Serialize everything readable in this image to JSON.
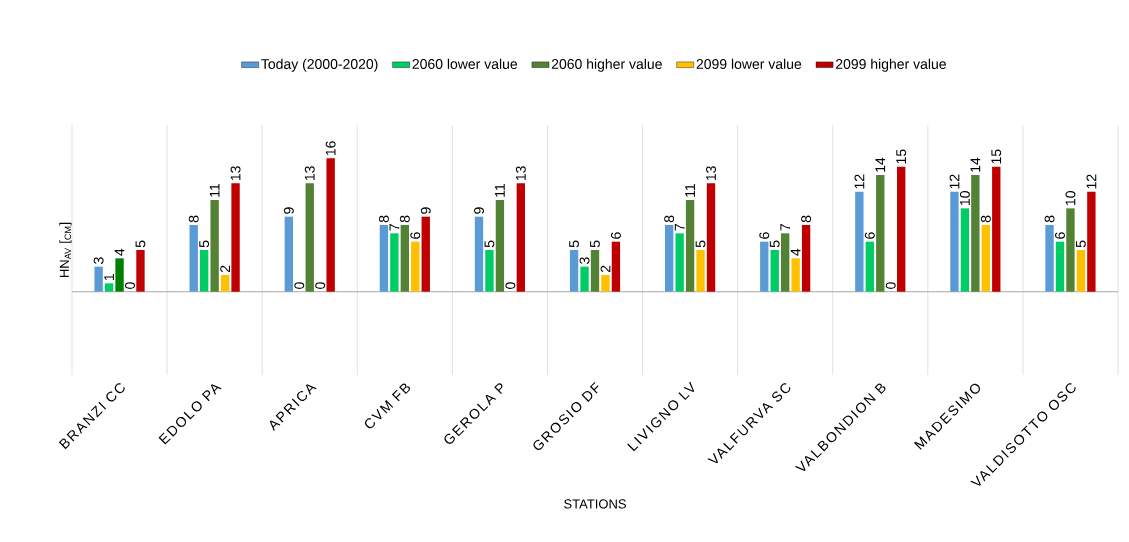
{
  "chart_data": {
    "type": "bar",
    "xlabel": "STATIONS",
    "ylabel": "HN$_{AV}$ [$_{CM}$]",
    "categories": [
      "BRANZI CC",
      "EDOLO PA",
      "APRICA",
      "CVM FB",
      "GEROLA P",
      "GROSIO DF",
      "LIVIGNO LV",
      "VALFURVA SC",
      "VALBONDION B",
      "MADESIMO",
      "VALDISOTTO OSC"
    ],
    "series": [
      {
        "name": "Today (2000-2020)",
        "color": "#5b9bd5",
        "values": [
          3,
          8,
          9,
          8,
          9,
          5,
          8,
          6,
          12,
          12,
          8
        ]
      },
      {
        "name": "2060 lower value",
        "color": "#00cc66",
        "values": [
          1,
          5,
          0,
          7,
          5,
          3,
          7,
          5,
          6,
          10,
          6
        ]
      },
      {
        "name": "2060 higher value",
        "color": "#548235",
        "colors": [
          "#008000",
          "#548235",
          "#548235",
          "#548235",
          "#548235",
          "#548235",
          "#548235",
          "#548235",
          "#548235",
          "#548235",
          "#548235"
        ],
        "values": [
          4,
          11,
          13,
          8,
          11,
          5,
          11,
          7,
          14,
          14,
          10
        ]
      },
      {
        "name": "2099 lower value",
        "color": "#ffc000",
        "values": [
          0,
          2,
          0,
          6,
          0,
          2,
          5,
          4,
          0,
          8,
          5
        ]
      },
      {
        "name": "2099 higher value",
        "color": "#c00000",
        "values": [
          5,
          13,
          16,
          9,
          13,
          6,
          13,
          8,
          15,
          15,
          12
        ]
      }
    ],
    "ylim": [
      -10,
      20
    ],
    "tick_labels": "x",
    "grid": "x",
    "legend": "top",
    "data_labels": true
  }
}
